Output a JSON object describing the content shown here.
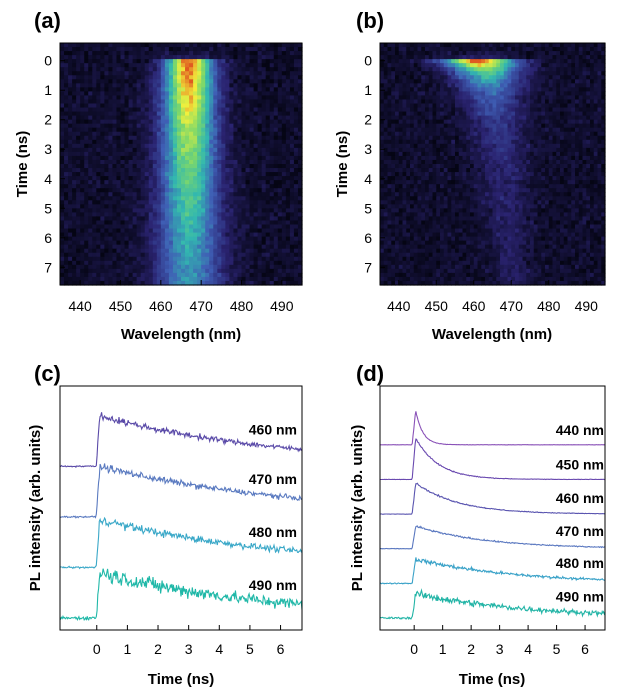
{
  "colors": {
    "map_low": "#050514",
    "map_mid1": "#2a2370",
    "map_mid2": "#3f5fb5",
    "map_mid3": "#32b8b0",
    "map_mid4": "#7ed86a",
    "map_high": "#f2f03c",
    "map_peak": "#e05a20",
    "trace_460": "#5a4aa8",
    "trace_470": "#5a7ac0",
    "trace_480": "#3aa8c8",
    "trace_490": "#20b8a8",
    "trace_440_d": "#8a52b8",
    "trace_450_d": "#6a4ab0",
    "trace_460_d": "#5a55b0",
    "trace_470_d": "#5a78c0",
    "trace_480_d": "#3aa2c8",
    "trace_490_d": "#22b4a6"
  },
  "chart_data": [
    {
      "panel": "(a)",
      "type": "heatmap",
      "xlabel": "Wavelength (nm)",
      "ylabel": "Time (ns)",
      "xlim": [
        435,
        495
      ],
      "ylim": [
        -0.6,
        7.6
      ],
      "y_inverted": true,
      "xticks": [
        "440",
        "450",
        "460",
        "470",
        "480",
        "490"
      ],
      "yticks": [
        "0",
        "1",
        "2",
        "3",
        "4",
        "5",
        "6",
        "7"
      ],
      "emission_center_nm": 467,
      "emission_width_nm_at_0ns": 6,
      "emission_width_nm_at_7ns": 8,
      "peak_time_ns": 0.5,
      "decay_time_ns": 9
    },
    {
      "panel": "(b)",
      "type": "heatmap",
      "xlabel": "Wavelength (nm)",
      "ylabel": "Time (ns)",
      "xlim": [
        435,
        495
      ],
      "ylim": [
        -0.6,
        7.6
      ],
      "y_inverted": true,
      "xticks": [
        "440",
        "450",
        "460",
        "470",
        "480",
        "490"
      ],
      "yticks": [
        "0",
        "1",
        "2",
        "3",
        "4",
        "5",
        "6",
        "7"
      ],
      "emission_center_nm_at_0ns": 461,
      "emission_center_nm_at_7ns": 470,
      "emission_width_nm_at_0ns": 10,
      "emission_width_nm_at_7ns": 5,
      "peak_time_ns": 0.1,
      "decay_time_ns": 2.2
    },
    {
      "panel": "(c)",
      "type": "line",
      "xlabel": "Time (ns)",
      "ylabel": "PL intensity (arb. units)",
      "xlim": [
        -1.2,
        6.7
      ],
      "xticks": [
        "0",
        "1",
        "2",
        "3",
        "4",
        "5",
        "6"
      ],
      "series": [
        {
          "name": "460 nm",
          "onset_ns": 0.1,
          "decay_ns": 6.0,
          "amplitude": 1.0,
          "baseline": 3,
          "noise": 0.08
        },
        {
          "name": "470 nm",
          "onset_ns": 0.1,
          "decay_ns": 6.5,
          "amplitude": 1.0,
          "baseline": 2,
          "noise": 0.08
        },
        {
          "name": "480 nm",
          "onset_ns": 0.1,
          "decay_ns": 6.0,
          "amplitude": 0.95,
          "baseline": 1,
          "noise": 0.1
        },
        {
          "name": "490 nm",
          "onset_ns": 0.1,
          "decay_ns": 5.5,
          "amplitude": 0.9,
          "baseline": 0,
          "noise": 0.2
        }
      ]
    },
    {
      "panel": "(d)",
      "type": "line",
      "xlabel": "Time (ns)",
      "ylabel": "PL intensity (arb. units)",
      "xlim": [
        -1.2,
        6.7
      ],
      "xticks": [
        "0",
        "1",
        "2",
        "3",
        "4",
        "5",
        "6"
      ],
      "series": [
        {
          "name": "440 nm",
          "onset_ns": 0.05,
          "decay_ns": 0.25,
          "amplitude": 1.0,
          "baseline": 5,
          "noise": 0.02
        },
        {
          "name": "450 nm",
          "onset_ns": 0.05,
          "decay_ns": 0.8,
          "amplitude": 1.2,
          "baseline": 4,
          "noise": 0.03
        },
        {
          "name": "460 nm",
          "onset_ns": 0.05,
          "decay_ns": 1.5,
          "amplitude": 0.9,
          "baseline": 3,
          "noise": 0.03
        },
        {
          "name": "470 nm",
          "onset_ns": 0.05,
          "decay_ns": 2.5,
          "amplitude": 0.65,
          "baseline": 2,
          "noise": 0.04
        },
        {
          "name": "480 nm",
          "onset_ns": 0.05,
          "decay_ns": 3.5,
          "amplitude": 0.7,
          "baseline": 1,
          "noise": 0.08
        },
        {
          "name": "490 nm",
          "onset_ns": 0.05,
          "decay_ns": 4.0,
          "amplitude": 0.7,
          "baseline": 0,
          "noise": 0.15
        }
      ]
    }
  ]
}
